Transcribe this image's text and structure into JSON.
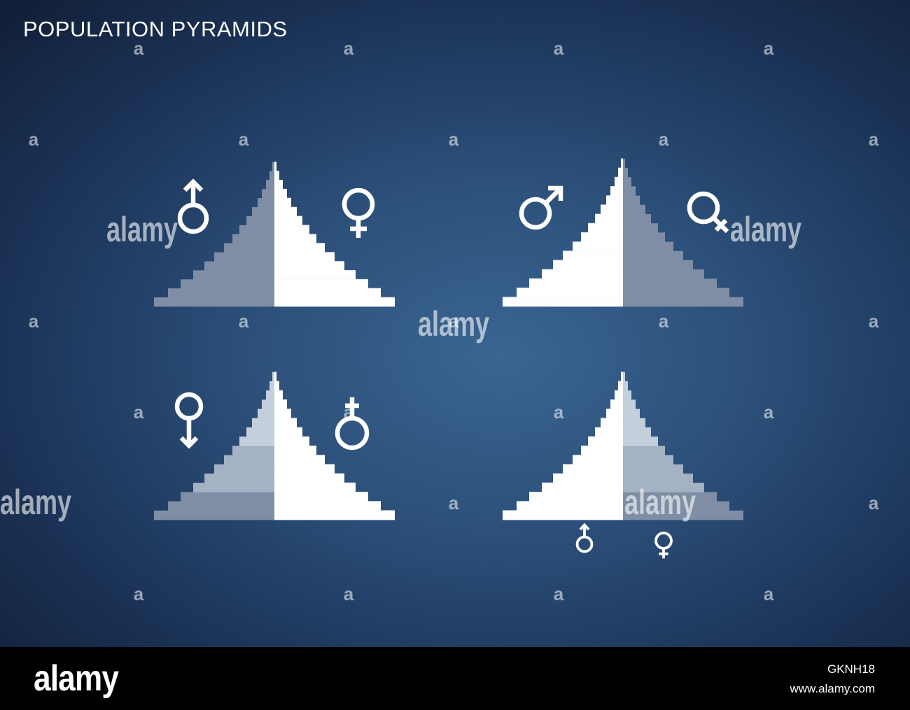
{
  "title": "POPULATION PYRAMIDS",
  "watermark": {
    "brand": "alamy",
    "tile_letter": "a"
  },
  "footer": {
    "brand": "alamy",
    "image_id": "GKNH18",
    "url": "www.alamy.com"
  },
  "colors": {
    "white_bar": "#ffffff",
    "gray_bar": "#7f8ea5",
    "light_band": "#c4cfdc",
    "mid_band": "#a4b2c4",
    "dark_band": "#7f8ea5"
  },
  "chart_data": [
    {
      "type": "bar",
      "name_label": "",
      "shape": "expansive",
      "left_symbol": "male-icon",
      "right_symbol": "female-icon",
      "left_color": "gray",
      "right_color": "white",
      "left_values": [
        172,
        152,
        134,
        116,
        100,
        86,
        72,
        60,
        50,
        40,
        32,
        24,
        18,
        12,
        7,
        3
      ],
      "right_values": [
        172,
        152,
        134,
        116,
        100,
        86,
        72,
        60,
        50,
        40,
        32,
        24,
        18,
        12,
        7,
        3
      ]
    },
    {
      "type": "bar",
      "name_label": "",
      "shape": "expansive",
      "left_symbol": "male-icon",
      "right_symbol": "female-icon",
      "left_color": "white",
      "right_color": "gray",
      "left_values": [
        172,
        152,
        134,
        116,
        100,
        86,
        72,
        60,
        50,
        40,
        32,
        24,
        18,
        12,
        7,
        3
      ],
      "right_values": [
        172,
        152,
        134,
        116,
        100,
        86,
        72,
        60,
        50,
        40,
        32,
        24,
        18,
        12,
        7,
        3
      ]
    },
    {
      "type": "bar",
      "name_label": "",
      "shape": "expansive-banded",
      "left_symbol": "female-down-icon",
      "right_symbol": "male-cross-icon",
      "left_color": "banded",
      "right_color": "white",
      "left_values": [
        172,
        152,
        134,
        116,
        100,
        86,
        72,
        60,
        50,
        40,
        32,
        24,
        18,
        12,
        7,
        3
      ],
      "right_values": [
        172,
        152,
        134,
        116,
        100,
        86,
        72,
        60,
        50,
        40,
        32,
        24,
        18,
        12,
        7,
        3
      ]
    },
    {
      "type": "bar",
      "name_label": "",
      "shape": "expansive-banded",
      "left_symbol": "male-small-icon",
      "right_symbol": "female-small-icon",
      "left_color": "white",
      "right_color": "banded",
      "left_values": [
        172,
        152,
        134,
        116,
        100,
        86,
        72,
        60,
        50,
        40,
        32,
        24,
        18,
        12,
        7,
        3
      ],
      "right_values": [
        172,
        152,
        134,
        116,
        100,
        86,
        72,
        60,
        50,
        40,
        32,
        24,
        18,
        12,
        7,
        3
      ]
    }
  ]
}
